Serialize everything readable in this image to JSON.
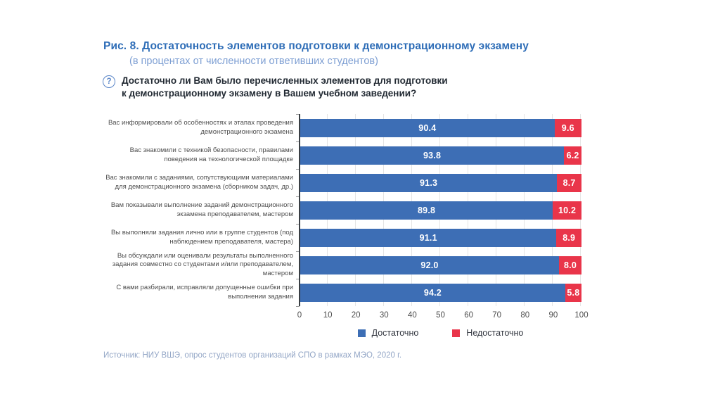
{
  "header": {
    "title": "Рис. 8. Достаточность элементов подготовки к демонстрационному экзамену",
    "subtitle": "(в процентах от численности ответивших студентов)"
  },
  "question": {
    "icon": "question-mark-circle",
    "icon_glyph": "?",
    "line1": "Достаточно ли Вам было перечисленных элементов для подготовки",
    "line2": "к демонстрационному экзамену в Вашем учебном заведении?"
  },
  "chart_data": {
    "type": "bar",
    "orientation": "horizontal",
    "stacked": true,
    "categories": [
      "Вас информировали об особенностях и этапах проведения демонстрационного экзамена",
      "Вас знакомили с техникой безопасности, правилами поведения на технологической площадке",
      "Вас знакомили с заданиями, сопутствующими материалами для демонстрационного экзамена (сборником задач, др.)",
      "Вам показывали выполнение заданий демонстрационного экзамена преподавателем, мастером",
      "Вы выполняли задания лично или в группе студентов (под наблюдением преподавателя, мастера)",
      "Вы обсуждали или оценивали результаты выполненного задания совместно со студентами и/или преподавателем, мастером",
      "С вами разбирали, исправляли допущенные ошибки при выполнении задания"
    ],
    "series": [
      {
        "name": "Достаточно",
        "color": "#3d6eb5",
        "values": [
          90.4,
          93.8,
          91.3,
          89.8,
          91.1,
          92.0,
          94.2
        ],
        "labels": [
          "90.4",
          "93.8",
          "91.3",
          "89.8",
          "91.1",
          "92.0",
          "94.2"
        ]
      },
      {
        "name": "Недостаточно",
        "color": "#e9354a",
        "values": [
          9.6,
          6.2,
          8.7,
          10.2,
          8.9,
          8.0,
          5.8
        ],
        "labels": [
          "9.6",
          "6.2",
          "8.7",
          "10.2",
          "8.9",
          "8.0",
          "5.8"
        ]
      }
    ],
    "x_ticks": [
      0,
      10,
      20,
      30,
      40,
      50,
      60,
      70,
      80,
      90,
      100
    ],
    "xlim": [
      0,
      100
    ],
    "grid": true,
    "legend_position": "bottom"
  },
  "footer": {
    "source": "Источник: НИУ ВШЭ, опрос студентов организаций СПО в рамках МЭО, 2020 г."
  }
}
